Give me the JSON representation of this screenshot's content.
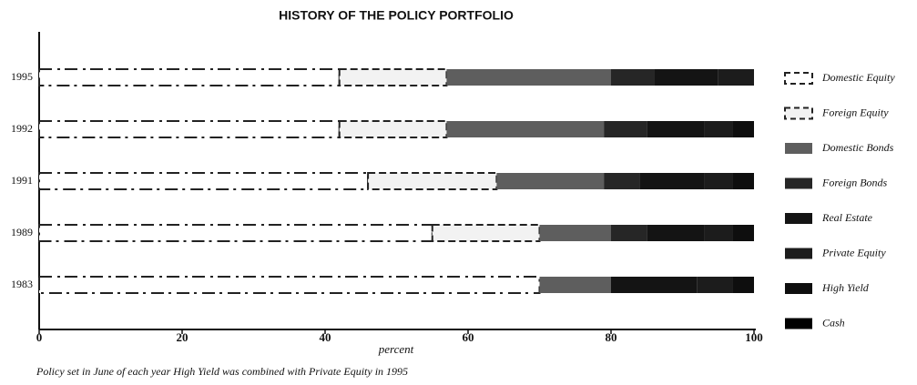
{
  "chart_data": {
    "type": "stacked_bar_horizontal",
    "title": "HISTORY OF THE POLICY PORTFOLIO",
    "x_label": "percent",
    "note": "Policy set in June of each year  High Yield was combined with Private Equity in 1995",
    "categories": [
      "1995",
      "1992",
      "1991",
      "1989",
      "1983"
    ],
    "series": [
      {
        "name": "Domestic Equity",
        "color": "#ffffff",
        "values": [
          42,
          42,
          46,
          55,
          70
        ]
      },
      {
        "name": "Foreign Equity",
        "color": "#f2f2f2",
        "values": [
          15,
          15,
          18,
          15,
          0
        ]
      },
      {
        "name": "Domestic Bonds",
        "color": "#5e5e5e",
        "values": [
          23,
          22,
          15,
          10,
          10
        ]
      },
      {
        "name": "Foreign Bonds",
        "color": "#262626",
        "values": [
          6,
          6,
          5,
          5,
          0
        ]
      },
      {
        "name": "Real Estate",
        "color": "#141414",
        "values": [
          9,
          8,
          9,
          8,
          12
        ]
      },
      {
        "name": "Private Equity",
        "color": "#1c1c1c",
        "values": [
          5,
          4,
          4,
          4,
          5
        ]
      },
      {
        "name": "High Yield",
        "color": "#0e0e0e",
        "values": [
          0,
          3,
          3,
          3,
          3
        ]
      },
      {
        "name": "Cash",
        "color": "#000000",
        "values": [
          0,
          0,
          0,
          0,
          0
        ]
      }
    ],
    "xlim": [
      0,
      100
    ],
    "xticks": [
      0,
      20,
      40,
      60,
      80,
      100
    ]
  }
}
